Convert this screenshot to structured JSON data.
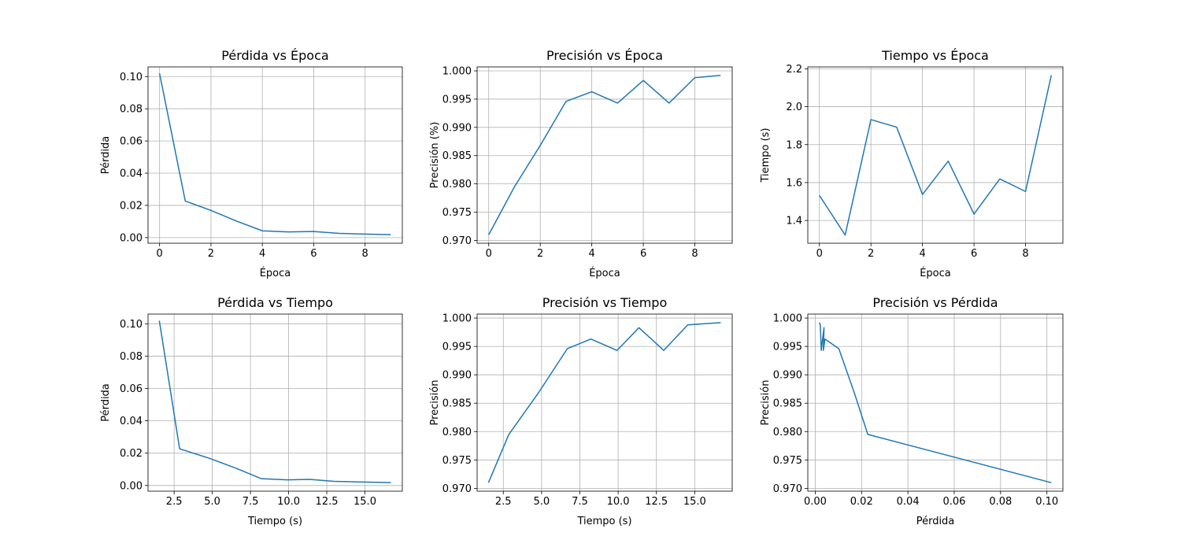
{
  "colors": {
    "line": "#1f77b4",
    "grid": "#b0b0b0",
    "axis": "#000000",
    "background": "#ffffff"
  },
  "chart_data": [
    {
      "type": "line",
      "title": "Pérdida vs Época",
      "xlabel": "Época",
      "ylabel": "Pérdida",
      "xlim": [
        -0.45,
        9.45
      ],
      "ylim": [
        -0.0035,
        0.106
      ],
      "xticks": [
        0,
        2,
        4,
        6,
        8
      ],
      "xtick_labels": [
        "0",
        "2",
        "4",
        "6",
        "8"
      ],
      "yticks": [
        0.0,
        0.02,
        0.04,
        0.06,
        0.08,
        0.1
      ],
      "ytick_labels": [
        "0.00",
        "0.02",
        "0.04",
        "0.06",
        "0.08",
        "0.10"
      ],
      "grid": true,
      "series": [
        {
          "x": [
            0,
            1,
            2,
            3,
            4,
            5,
            6,
            7,
            8,
            9
          ],
          "y": [
            0.1019,
            0.0227,
            0.0169,
            0.0102,
            0.0042,
            0.0035,
            0.0038,
            0.0026,
            0.0022,
            0.0018
          ]
        }
      ]
    },
    {
      "type": "line",
      "title": "Precisión vs Época",
      "xlabel": "Época",
      "ylabel": "Precisión (%)",
      "xlim": [
        -0.45,
        9.45
      ],
      "ylim": [
        0.9695,
        1.0007
      ],
      "xticks": [
        0,
        2,
        4,
        6,
        8
      ],
      "xtick_labels": [
        "0",
        "2",
        "4",
        "6",
        "8"
      ],
      "yticks": [
        0.97,
        0.975,
        0.98,
        0.985,
        0.99,
        0.995,
        1.0
      ],
      "ytick_labels": [
        "0.970",
        "0.975",
        "0.980",
        "0.985",
        "0.990",
        "0.995",
        "1.000"
      ],
      "grid": true,
      "series": [
        {
          "x": [
            0,
            1,
            2,
            3,
            4,
            5,
            6,
            7,
            8,
            9
          ],
          "y": [
            0.971,
            0.9795,
            0.9868,
            0.9946,
            0.9963,
            0.9943,
            0.9983,
            0.9943,
            0.9988,
            0.9992
          ]
        }
      ]
    },
    {
      "type": "line",
      "title": "Tiempo vs Época",
      "xlabel": "Época",
      "ylabel": "Tiempo (s)",
      "xlim": [
        -0.45,
        9.45
      ],
      "ylim": [
        1.28,
        2.21
      ],
      "xticks": [
        0,
        2,
        4,
        6,
        8
      ],
      "xtick_labels": [
        "0",
        "2",
        "4",
        "6",
        "8"
      ],
      "yticks": [
        1.4,
        1.6,
        1.8,
        2.0,
        2.2
      ],
      "ytick_labels": [
        "1.4",
        "1.6",
        "1.8",
        "2.0",
        "2.2"
      ],
      "grid": true,
      "series": [
        {
          "x": [
            0,
            1,
            2,
            3,
            4,
            5,
            6,
            7,
            8,
            9
          ],
          "y": [
            1.532,
            1.323,
            1.932,
            1.892,
            1.537,
            1.713,
            1.434,
            1.619,
            1.553,
            2.166
          ]
        }
      ]
    },
    {
      "type": "line",
      "title": "Pérdida vs Tiempo",
      "xlabel": "Tiempo (s)",
      "ylabel": "Pérdida",
      "xlim": [
        0.79,
        17.45
      ],
      "ylim": [
        -0.0035,
        0.106
      ],
      "xticks": [
        2.5,
        5.0,
        7.5,
        10.0,
        12.5,
        15.0
      ],
      "xtick_labels": [
        "2.5",
        "5.0",
        "7.5",
        "10.0",
        "12.5",
        "15.0"
      ],
      "yticks": [
        0.0,
        0.02,
        0.04,
        0.06,
        0.08,
        0.1
      ],
      "ytick_labels": [
        "0.00",
        "0.02",
        "0.04",
        "0.06",
        "0.08",
        "0.10"
      ],
      "grid": true,
      "series": [
        {
          "x": [
            1.53,
            2.86,
            4.79,
            6.68,
            8.22,
            9.93,
            11.36,
            12.98,
            14.54,
            16.7
          ],
          "y": [
            0.1019,
            0.0227,
            0.0169,
            0.0102,
            0.0042,
            0.0035,
            0.0038,
            0.0026,
            0.0022,
            0.0018
          ]
        }
      ]
    },
    {
      "type": "line",
      "title": "Precisión vs Tiempo",
      "xlabel": "Tiempo (s)",
      "ylabel": "Precisión",
      "xlim": [
        0.79,
        17.45
      ],
      "ylim": [
        0.9695,
        1.0007
      ],
      "xticks": [
        2.5,
        5.0,
        7.5,
        10.0,
        12.5,
        15.0
      ],
      "xtick_labels": [
        "2.5",
        "5.0",
        "7.5",
        "10.0",
        "12.5",
        "15.0"
      ],
      "yticks": [
        0.97,
        0.975,
        0.98,
        0.985,
        0.99,
        0.995,
        1.0
      ],
      "ytick_labels": [
        "0.970",
        "0.975",
        "0.980",
        "0.985",
        "0.990",
        "0.995",
        "1.000"
      ],
      "grid": true,
      "series": [
        {
          "x": [
            1.53,
            2.86,
            4.79,
            6.68,
            8.22,
            9.93,
            11.36,
            12.98,
            14.54,
            16.7
          ],
          "y": [
            0.971,
            0.9795,
            0.9868,
            0.9946,
            0.9963,
            0.9943,
            0.9983,
            0.9943,
            0.9988,
            0.9992
          ]
        }
      ]
    },
    {
      "type": "line",
      "title": "Precisión vs Pérdida",
      "xlabel": "Pérdida",
      "ylabel": "Precisión",
      "xlim": [
        -0.0032,
        0.1069
      ],
      "ylim": [
        0.9695,
        1.0007
      ],
      "xticks": [
        0.0,
        0.02,
        0.04,
        0.06,
        0.08,
        0.1
      ],
      "xtick_labels": [
        "0.00",
        "0.02",
        "0.04",
        "0.06",
        "0.08",
        "0.10"
      ],
      "yticks": [
        0.97,
        0.975,
        0.98,
        0.985,
        0.99,
        0.995,
        1.0
      ],
      "ytick_labels": [
        "0.970",
        "0.975",
        "0.980",
        "0.985",
        "0.990",
        "0.995",
        "1.000"
      ],
      "grid": true,
      "series": [
        {
          "x": [
            0.1019,
            0.0227,
            0.0169,
            0.0102,
            0.0042,
            0.0035,
            0.0038,
            0.0026,
            0.0022,
            0.0018
          ],
          "y": [
            0.971,
            0.9795,
            0.9868,
            0.9946,
            0.9963,
            0.9943,
            0.9983,
            0.9943,
            0.9988,
            0.9992
          ]
        }
      ]
    }
  ]
}
